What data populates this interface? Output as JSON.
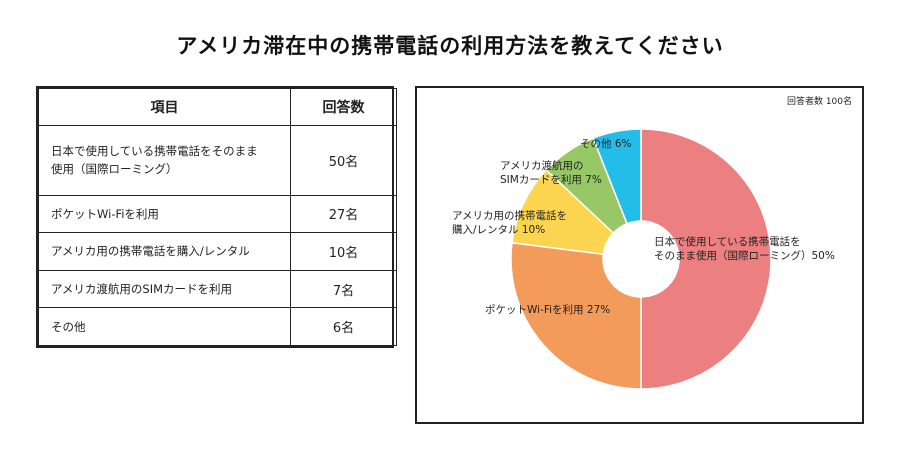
{
  "title": "アメリカ滞在中の携帯電話の利用方法を教えてください",
  "table": {
    "headers": [
      "項目",
      "回答数"
    ],
    "rows": [
      {
        "item": [
          "日本で使用している携帯電話をそのまま",
          "使用（国際ローミング）"
        ],
        "count": "50名"
      },
      {
        "item": [
          "ポケットWi-Fiを利用"
        ],
        "count": "27名"
      },
      {
        "item": [
          "アメリカ用の携帯電話を購入/レンタル"
        ],
        "count": "10名"
      },
      {
        "item": [
          "アメリカ渡航用のSIMカードを利用"
        ],
        "count": "7名"
      },
      {
        "item": [
          "その他"
        ],
        "count": "6名"
      }
    ]
  },
  "chart_data": {
    "type": "pie",
    "donut": true,
    "respondents_note": "回答者数 100名",
    "categories": [
      "日本で使用している携帯電話をそのまま使用（国際ローミング）",
      "ポケットWi-Fiを利用",
      "アメリカ用の携帯電話を購入/レンタル",
      "アメリカ渡航用のSIMカードを利用",
      "その他"
    ],
    "values": [
      50,
      27,
      10,
      7,
      6
    ],
    "colors": [
      "#ec7f80",
      "#f39b5b",
      "#fbd54f",
      "#98c765",
      "#22bde9"
    ],
    "labels": [
      [
        "日本で使用している携帯電話を",
        "そのまま使用（国際ローミング）50%"
      ],
      [
        "ポケットWi-Fiを利用 27%"
      ],
      [
        "アメリカ用の携帯電話を",
        "購入/レンタル 10%"
      ],
      [
        "アメリカ渡航用の",
        "SIMカードを利用 7%"
      ],
      [
        "その他 6%"
      ]
    ]
  }
}
